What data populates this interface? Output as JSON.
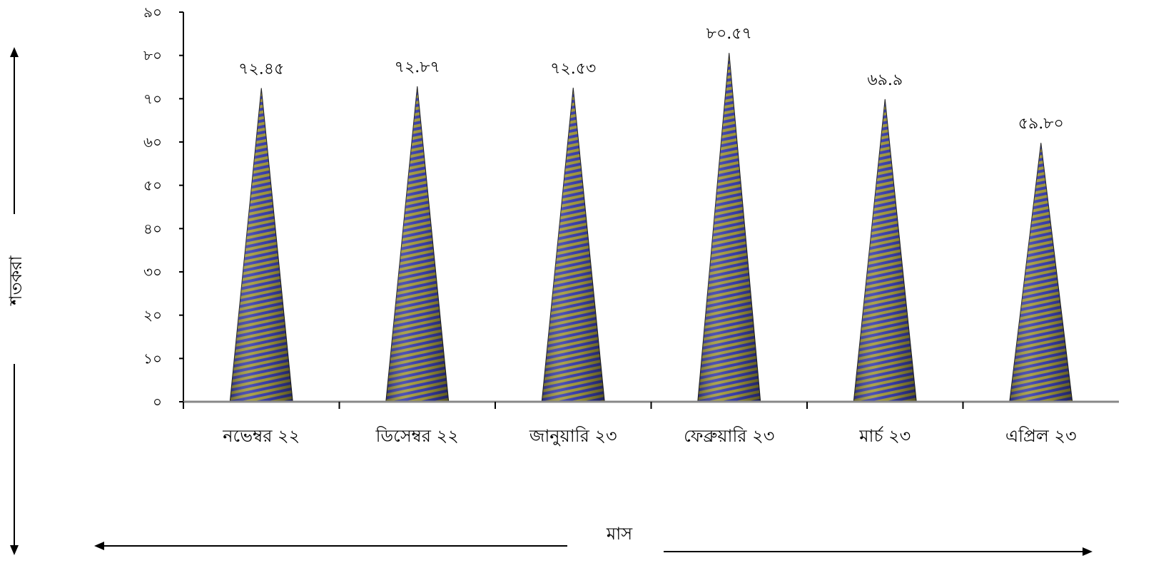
{
  "chart_data": {
    "type": "bar",
    "bar_shape": "cone",
    "categories": [
      "নভেম্বর ২২",
      "ডিসেম্বর ২২",
      "জানুয়ারি ২৩",
      "ফেব্রুয়ারি ২৩",
      "মার্চ ২৩",
      "এপ্রিল ২৩"
    ],
    "values": [
      72.45,
      72.87,
      72.53,
      80.57,
      69.9,
      59.8
    ],
    "data_labels": [
      "৭২.৪৫",
      "৭২.৮৭",
      "৭২.৫৩",
      "৮০.৫৭",
      "৬৯.৯",
      "৫৯.৮০"
    ],
    "ylim": [
      0,
      90
    ],
    "y_ticks": [
      0,
      10,
      20,
      30,
      40,
      50,
      60,
      70,
      80,
      90
    ],
    "y_tick_labels": [
      "০",
      "১০",
      "২০",
      "৩০",
      "৪০",
      "৫০",
      "৬০",
      "৭০",
      "৮০",
      "৯০"
    ],
    "xlabel": "মাস",
    "ylabel": "শতকরা",
    "grid": false,
    "legend": "none",
    "colors": {
      "stripe_a": "#3a3fb0",
      "stripe_b": "#a39a3c",
      "axis": "#888888"
    }
  }
}
